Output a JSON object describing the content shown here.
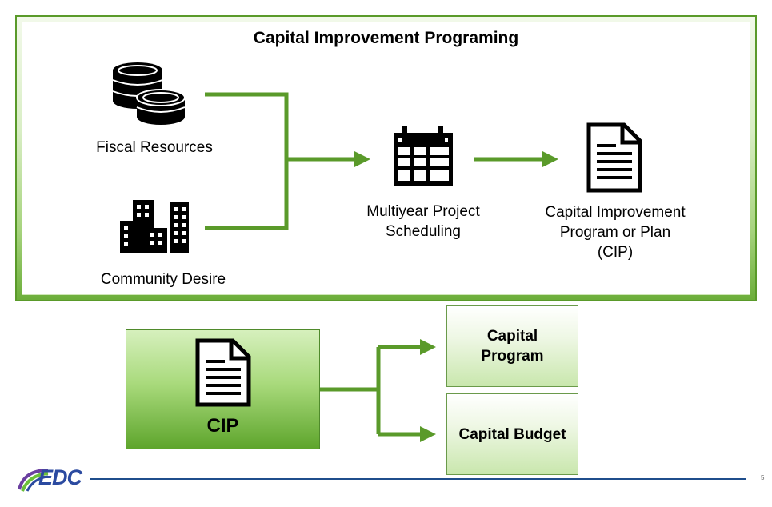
{
  "title": "Capital Improvement Programing",
  "inputs": {
    "fiscal": "Fiscal Resources",
    "community": "Community Desire"
  },
  "scheduling": [
    "Multiyear Project",
    "Scheduling"
  ],
  "cip_plan": [
    "Capital Improvement",
    "Program or Plan",
    "(CIP)"
  ],
  "cip_box_label": "CIP",
  "outputs": {
    "program": [
      "Capital",
      "Program"
    ],
    "budget": "Capital Budget"
  },
  "logo_text": "EDC",
  "page_number": "5",
  "colors": {
    "arrow_green": "#5a9a2a",
    "footer_blue": "#1f4e8c",
    "logo_blue": "#2b4aa0",
    "logo_green": "#6bbf3a",
    "logo_purple": "#6a3fa0"
  },
  "icons": {
    "fiscal": "coins-stack-icon",
    "community": "city-buildings-icon",
    "scheduling": "calendar-icon",
    "plan": "document-icon",
    "cip": "document-icon"
  }
}
